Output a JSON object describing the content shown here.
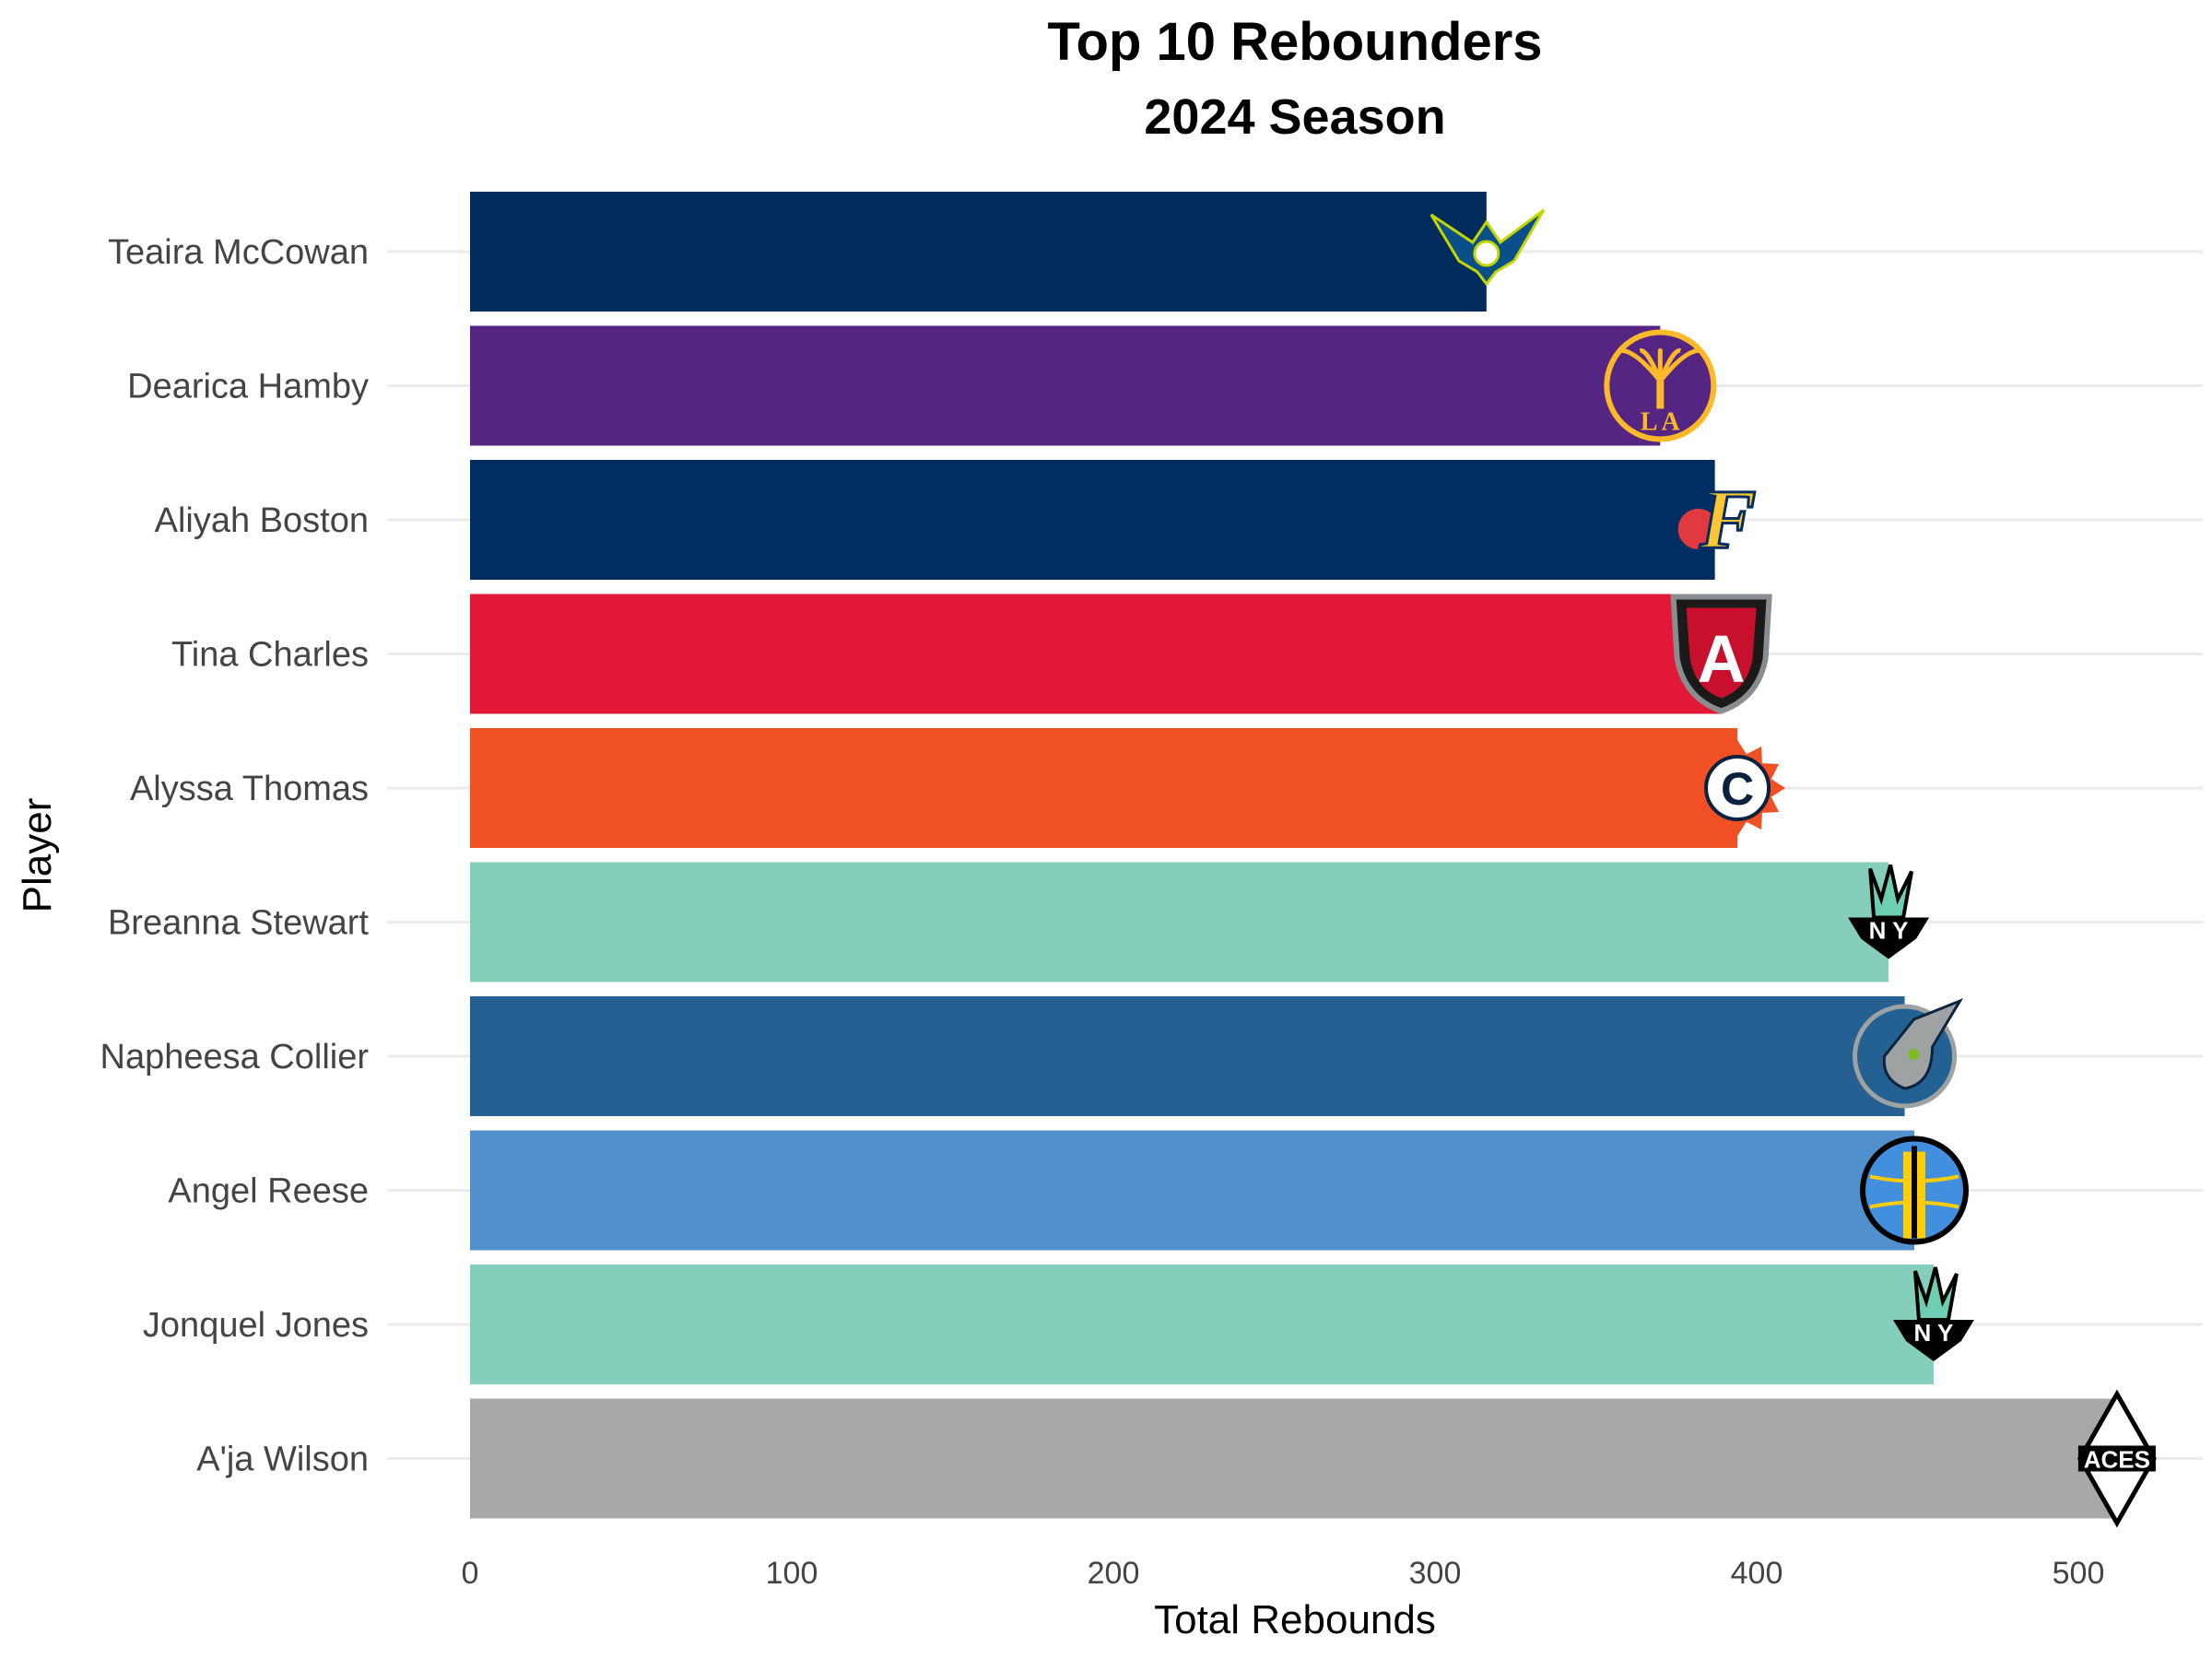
{
  "chart_data": {
    "type": "bar",
    "orientation": "horizontal",
    "title": "Top 10 Rebounders",
    "subtitle": "2024 Season",
    "xlabel": "Total Rebounds",
    "ylabel": "Player",
    "xlim": [
      0,
      520
    ],
    "xticks": [
      0,
      100,
      200,
      300,
      400,
      500
    ],
    "grid": true,
    "legend": "none",
    "categories": [
      "Teaira McCowan",
      "Dearica Hamby",
      "Aliyah Boston",
      "Tina Charles",
      "Alyssa Thomas",
      "Breanna Stewart",
      "Napheesa Collier",
      "Angel Reese",
      "Jonquel Jones",
      "A'ja Wilson"
    ],
    "values": [
      316,
      370,
      387,
      389,
      394,
      441,
      446,
      449,
      455,
      512
    ],
    "bar_colors": [
      "#002B5C",
      "#552583",
      "#002D62",
      "#E31837",
      "#F05023",
      "#86CEBC",
      "#266092",
      "#5091CD",
      "#86CEBC",
      "#A7A8AA"
    ],
    "team_logos": [
      "dallas-wings-logo-icon",
      "la-sparks-logo-icon",
      "indiana-fever-logo-icon",
      "atlanta-dream-logo-icon",
      "connecticut-sun-logo-icon",
      "ny-liberty-logo-icon",
      "minnesota-lynx-logo-icon",
      "chicago-sky-logo-icon",
      "ny-liberty-logo-icon",
      "las-vegas-aces-logo-icon"
    ],
    "logo_text": [
      "",
      "LA",
      "F",
      "A",
      "C",
      "NY",
      "",
      "",
      "NY",
      "ACES"
    ]
  }
}
